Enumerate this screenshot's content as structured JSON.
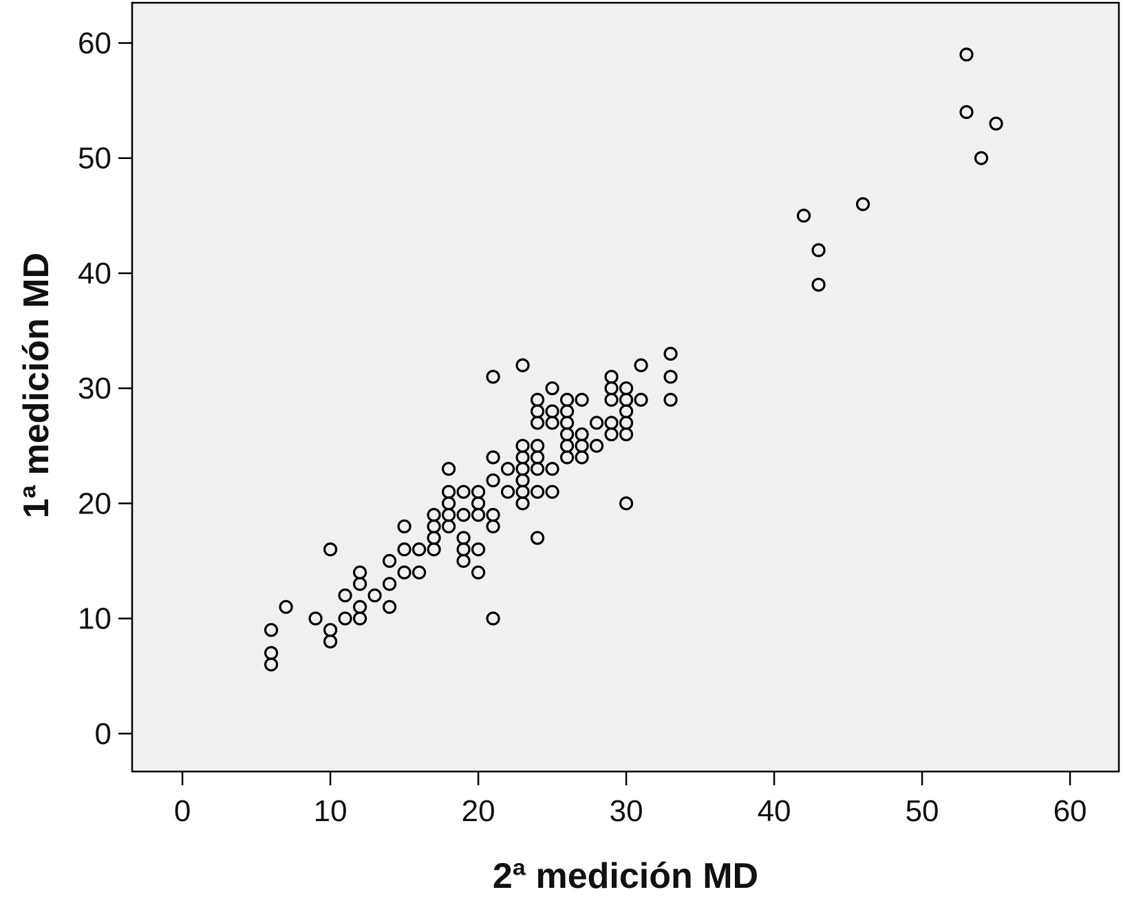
{
  "chart_data": {
    "type": "scatter",
    "title": "",
    "xlabel": "2ª medición MD",
    "ylabel": "1ª medición MD",
    "xlim": [
      -3.4,
      63.3
    ],
    "ylim": [
      -3.3,
      63.5
    ],
    "xticks": [
      "0",
      "10",
      "20",
      "30",
      "40",
      "50",
      "60"
    ],
    "yticks": [
      "0",
      "10",
      "20",
      "30",
      "40",
      "50",
      "60"
    ],
    "grid": false,
    "legend": "none",
    "colors": {
      "plot_background": "#f0f0f0",
      "marker": "#000000",
      "frame": "#000000"
    },
    "points": [
      [
        6,
        9
      ],
      [
        6,
        7
      ],
      [
        6,
        6
      ],
      [
        7,
        11
      ],
      [
        9,
        10
      ],
      [
        10,
        16
      ],
      [
        10,
        9
      ],
      [
        10,
        8
      ],
      [
        11,
        12
      ],
      [
        11,
        10
      ],
      [
        12,
        14
      ],
      [
        12,
        13
      ],
      [
        12,
        11
      ],
      [
        12,
        10
      ],
      [
        13,
        12
      ],
      [
        14,
        15
      ],
      [
        14,
        13
      ],
      [
        14,
        11
      ],
      [
        15,
        18
      ],
      [
        15,
        16
      ],
      [
        15,
        14
      ],
      [
        16,
        16
      ],
      [
        16,
        14
      ],
      [
        17,
        19
      ],
      [
        17,
        18
      ],
      [
        17,
        17
      ],
      [
        17,
        16
      ],
      [
        18,
        23
      ],
      [
        18,
        21
      ],
      [
        18,
        20
      ],
      [
        18,
        19
      ],
      [
        18,
        18
      ],
      [
        19,
        21
      ],
      [
        19,
        19
      ],
      [
        19,
        17
      ],
      [
        19,
        16
      ],
      [
        19,
        15
      ],
      [
        20,
        21
      ],
      [
        20,
        20
      ],
      [
        20,
        19
      ],
      [
        20,
        16
      ],
      [
        20,
        14
      ],
      [
        21,
        31
      ],
      [
        21,
        24
      ],
      [
        21,
        22
      ],
      [
        21,
        19
      ],
      [
        21,
        18
      ],
      [
        21,
        10
      ],
      [
        22,
        23
      ],
      [
        22,
        21
      ],
      [
        23,
        32
      ],
      [
        23,
        25
      ],
      [
        23,
        24
      ],
      [
        23,
        23
      ],
      [
        23,
        22
      ],
      [
        23,
        21
      ],
      [
        23,
        20
      ],
      [
        24,
        29
      ],
      [
        24,
        28
      ],
      [
        24,
        27
      ],
      [
        24,
        25
      ],
      [
        24,
        24
      ],
      [
        24,
        23
      ],
      [
        24,
        21
      ],
      [
        24,
        17
      ],
      [
        25,
        30
      ],
      [
        25,
        28
      ],
      [
        25,
        27
      ],
      [
        25,
        23
      ],
      [
        25,
        21
      ],
      [
        26,
        29
      ],
      [
        26,
        28
      ],
      [
        26,
        27
      ],
      [
        26,
        26
      ],
      [
        26,
        25
      ],
      [
        26,
        24
      ],
      [
        27,
        29
      ],
      [
        27,
        26
      ],
      [
        27,
        25
      ],
      [
        27,
        24
      ],
      [
        28,
        27
      ],
      [
        28,
        25
      ],
      [
        29,
        31
      ],
      [
        29,
        30
      ],
      [
        29,
        29
      ],
      [
        29,
        27
      ],
      [
        29,
        26
      ],
      [
        30,
        30
      ],
      [
        30,
        29
      ],
      [
        30,
        28
      ],
      [
        30,
        27
      ],
      [
        30,
        26
      ],
      [
        30,
        20
      ],
      [
        31,
        32
      ],
      [
        31,
        29
      ],
      [
        33,
        33
      ],
      [
        33,
        31
      ],
      [
        33,
        29
      ],
      [
        42,
        45
      ],
      [
        43,
        42
      ],
      [
        43,
        39
      ],
      [
        46,
        46
      ],
      [
        53,
        59
      ],
      [
        53,
        54
      ],
      [
        54,
        50
      ],
      [
        55,
        53
      ]
    ]
  }
}
